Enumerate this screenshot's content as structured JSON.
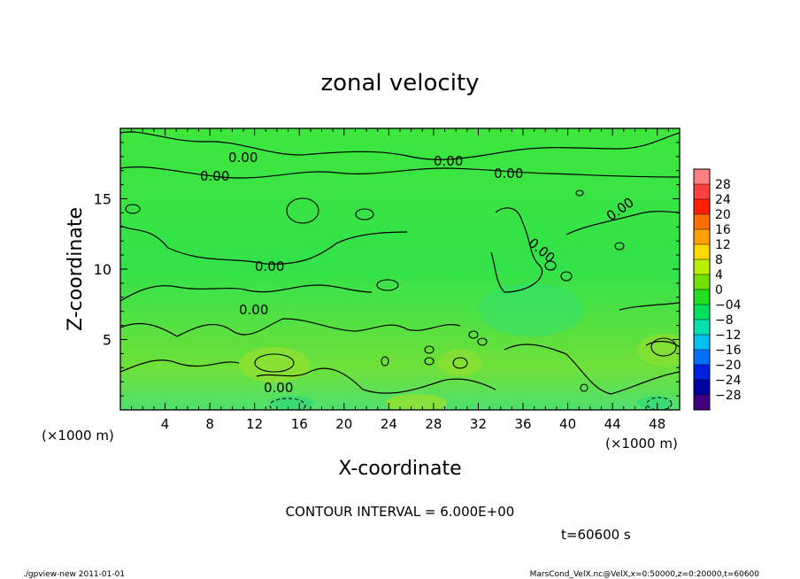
{
  "chart_data": {
    "type": "heatmap",
    "title": "zonal velocity",
    "xlabel": "X-coordinate",
    "ylabel": "Z-coordinate",
    "x_unit_label_left": "(×1000 m)",
    "x_unit_label_right": "(×1000 m)",
    "xlim": [
      0,
      50
    ],
    "ylim": [
      0,
      20
    ],
    "x_ticks": [
      4,
      8,
      12,
      16,
      20,
      24,
      28,
      32,
      36,
      40,
      44,
      48
    ],
    "y_ticks": [
      5,
      10,
      15
    ],
    "colorbar": {
      "labels": [
        "28",
        "24",
        "20",
        "16",
        "12",
        "8",
        "4",
        "0",
        "−04",
        "−8",
        "−12",
        "−16",
        "−20",
        "−24",
        "−28"
      ],
      "colors": [
        "#ff8080",
        "#ff4040",
        "#ff2000",
        "#ff7000",
        "#ffa000",
        "#ffd800",
        "#b8f000",
        "#70e000",
        "#22dd22",
        "#00e060",
        "#00e0b0",
        "#00c0f0",
        "#0070ff",
        "#0020e0",
        "#0000a0",
        "#400080"
      ]
    },
    "contour_labels": [
      "0.00",
      "0.00",
      "0.00",
      "0.00",
      "0.00",
      "0.00",
      "0.00",
      "0.00",
      "0.00"
    ],
    "contour_interval_text": "CONTOUR INTERVAL = 6.000E+00",
    "time_text": "t=60600 s"
  },
  "footer": {
    "left": "./gpview-new  2011-01-01",
    "right": "MarsCond_VelX.nc@VelX,x=0:50000,z=0:20000,t=60600"
  }
}
